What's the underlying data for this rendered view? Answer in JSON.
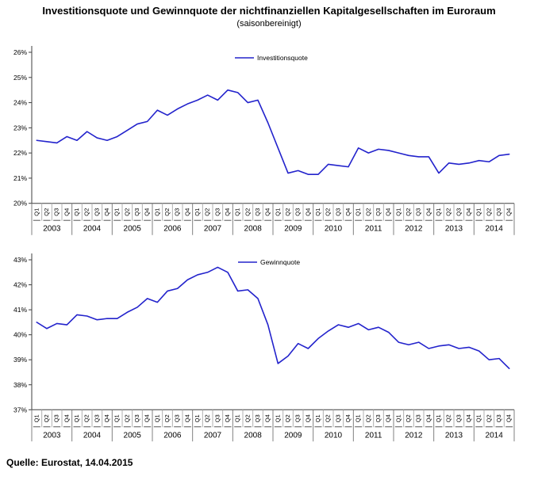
{
  "page": {
    "title": "Investitionsquote und Gewinnquote der nichtfinanziellen Kapitalgesellschaften im Euroraum",
    "subtitle": "(saisonbereinigt)",
    "source": "Quelle: Eurostat, 14.04.2015"
  },
  "colors": {
    "line": "#2323cc",
    "axis": "#3f3f3f",
    "separator_minor": "#b0b0b0",
    "separator_major": "#808080",
    "label_underline": "#555555",
    "text": "#000000"
  },
  "chart_data": [
    {
      "type": "line",
      "legend": "Investitionsquote",
      "legend_position": "top-center",
      "grid": false,
      "unit": "%",
      "ylim": [
        20,
        26
      ],
      "ytick_step": 1,
      "ytick_labels": [
        "20%",
        "21%",
        "22%",
        "23%",
        "24%",
        "25%",
        "26%"
      ],
      "years": [
        "2003",
        "2004",
        "2005",
        "2006",
        "2007",
        "2008",
        "2009",
        "2010",
        "2011",
        "2012",
        "2013",
        "2014"
      ],
      "quarters": [
        "Q1",
        "Q2",
        "Q3",
        "Q4"
      ],
      "values": [
        22.5,
        22.45,
        22.4,
        22.65,
        22.5,
        22.85,
        22.6,
        22.5,
        22.65,
        22.9,
        23.15,
        23.25,
        23.7,
        23.5,
        23.75,
        23.95,
        24.1,
        24.3,
        24.1,
        24.5,
        24.4,
        24.0,
        24.1,
        23.2,
        22.2,
        21.2,
        21.3,
        21.15,
        21.15,
        21.55,
        21.5,
        21.45,
        22.2,
        22.0,
        22.15,
        22.1,
        22.0,
        21.9,
        21.85,
        21.85,
        21.2,
        21.6,
        21.55,
        21.6,
        21.7,
        21.65,
        21.9,
        21.95
      ]
    },
    {
      "type": "line",
      "legend": "Gewinnquote",
      "legend_position": "top-center",
      "grid": false,
      "unit": "%",
      "ylim": [
        37,
        43
      ],
      "ytick_step": 1,
      "ytick_labels": [
        "37%",
        "38%",
        "39%",
        "40%",
        "41%",
        "42%",
        "43%"
      ],
      "years": [
        "2003",
        "2004",
        "2005",
        "2006",
        "2007",
        "2008",
        "2009",
        "2010",
        "2011",
        "2012",
        "2013",
        "2014"
      ],
      "quarters": [
        "Q1",
        "Q2",
        "Q3",
        "Q4"
      ],
      "values": [
        40.5,
        40.25,
        40.45,
        40.4,
        40.8,
        40.75,
        40.6,
        40.65,
        40.65,
        40.9,
        41.1,
        41.45,
        41.3,
        41.75,
        41.85,
        42.2,
        42.4,
        42.5,
        42.7,
        42.5,
        41.75,
        41.8,
        41.45,
        40.4,
        38.85,
        39.15,
        39.65,
        39.45,
        39.85,
        40.15,
        40.4,
        40.3,
        40.45,
        40.2,
        40.3,
        40.1,
        39.7,
        39.6,
        39.7,
        39.45,
        39.55,
        39.6,
        39.45,
        39.5,
        39.35,
        39.0,
        39.05,
        38.65
      ]
    }
  ]
}
